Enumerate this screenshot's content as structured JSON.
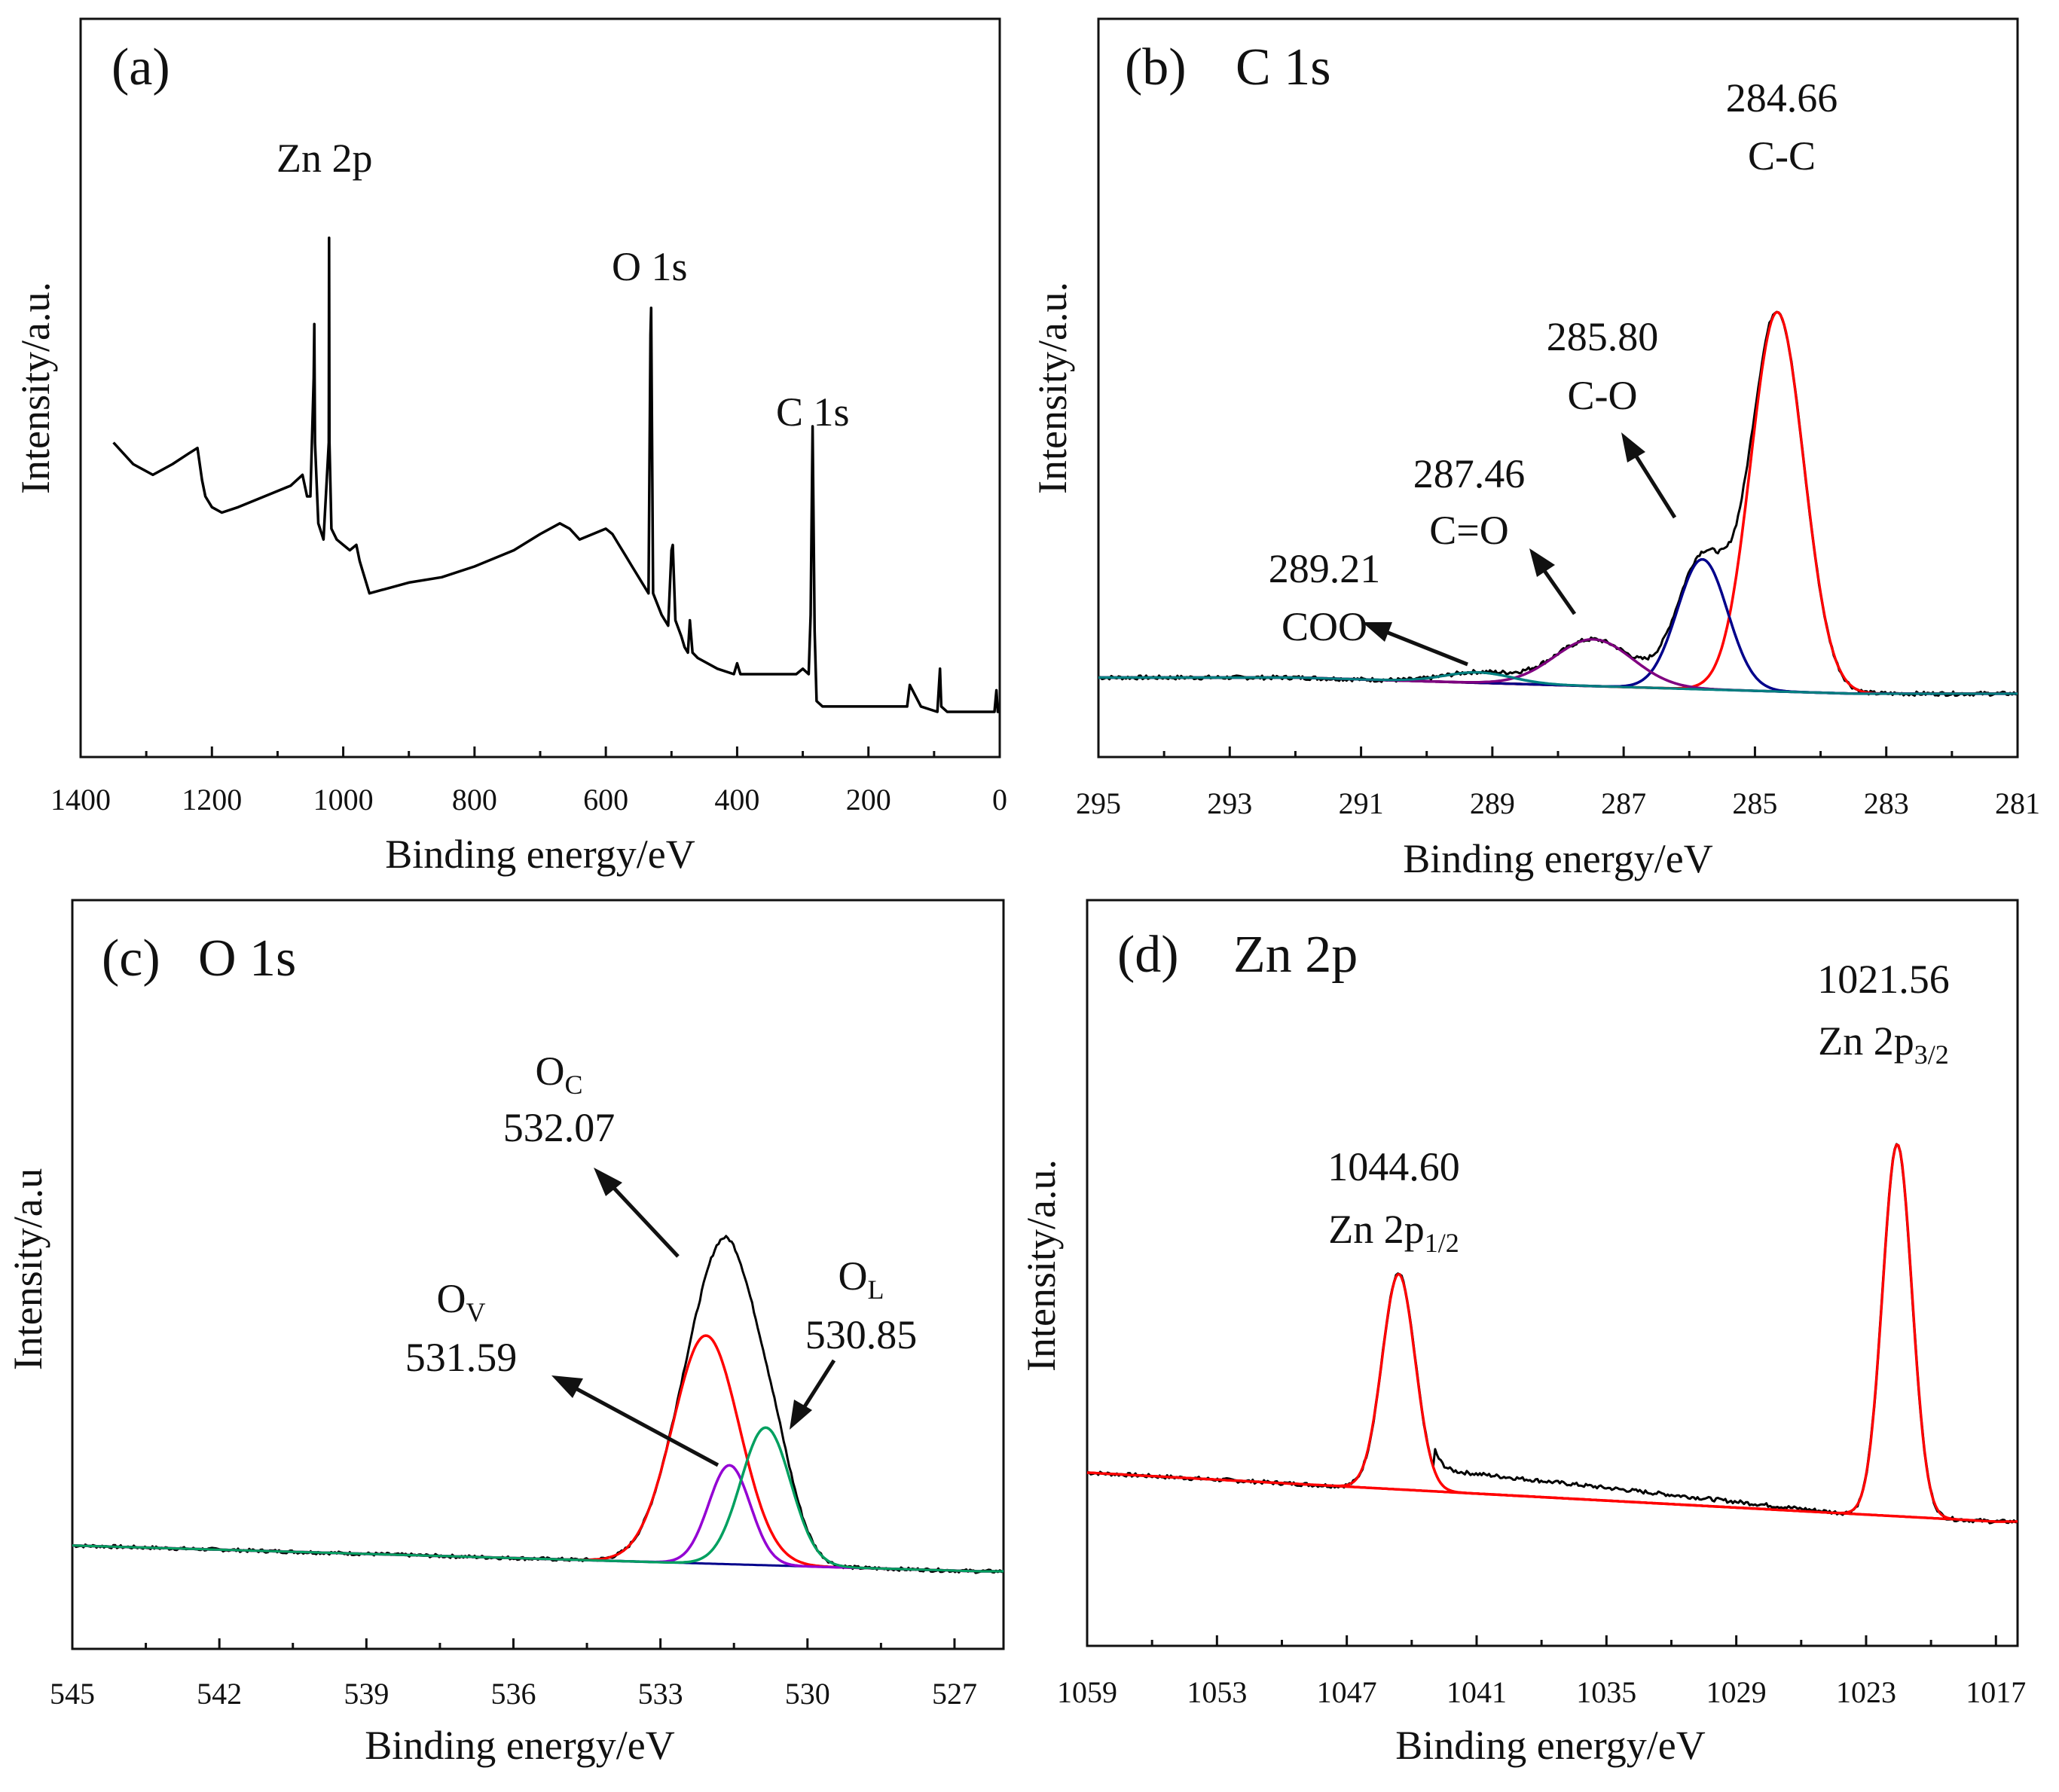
{
  "figure": {
    "panels": [
      {
        "id": "a",
        "label": "(a)",
        "title": ""
      },
      {
        "id": "b",
        "label": "(b)",
        "title": "C 1s"
      },
      {
        "id": "c",
        "label": "(c)",
        "title": "O 1s"
      },
      {
        "id": "d",
        "label": "(d)",
        "title": "Zn 2p"
      }
    ]
  },
  "chart_data": [
    {
      "id": "a",
      "type": "line",
      "title": "(a)",
      "xlabel": "Binding energy/eV",
      "ylabel": "Intensity/a.u.",
      "xlim": [
        1400,
        0
      ],
      "ylim": [
        0,
        100
      ],
      "xticks": [
        1400,
        1200,
        1000,
        800,
        600,
        400,
        200,
        0
      ],
      "series": [
        {
          "name": "survey",
          "color": "#000000",
          "x": [
            1350,
            1320,
            1290,
            1260,
            1235,
            1222,
            1215,
            1210,
            1200,
            1185,
            1160,
            1120,
            1080,
            1062,
            1055,
            1050,
            1045,
            1044,
            1043,
            1038,
            1030,
            1022,
            1021.5,
            1021,
            1018,
            1010,
            1000,
            990,
            980,
            975,
            970,
            960,
            900,
            850,
            800,
            740,
            700,
            670,
            655,
            640,
            600,
            590,
            580,
            570,
            560,
            545,
            535,
            532,
            531,
            528,
            515,
            505,
            500,
            498,
            494,
            485,
            480,
            475,
            472,
            468,
            460,
            430,
            405,
            400,
            395,
            380,
            340,
            310,
            300,
            291,
            288,
            285,
            282,
            279,
            270,
            240,
            200,
            150,
            141,
            137,
            120,
            95,
            91,
            89,
            80,
            50,
            20,
            8,
            5,
            3,
            1
          ],
          "y": [
            50,
            46,
            44,
            46,
            48,
            49,
            43,
            40,
            38,
            37,
            38,
            40,
            42,
            44,
            40,
            40,
            62,
            72,
            50,
            35,
            32,
            50,
            88,
            50,
            34,
            32,
            31,
            30,
            31,
            28,
            26,
            22,
            24,
            25,
            27,
            30,
            33,
            35,
            34,
            32,
            34,
            33,
            31,
            29,
            27,
            24,
            22,
            70,
            75,
            22,
            18,
            16,
            30,
            31,
            17,
            14,
            12,
            11,
            17,
            11,
            10,
            8,
            7,
            9,
            7,
            7,
            7,
            7,
            8,
            7,
            18,
            53,
            15,
            2,
            1,
            1,
            1,
            1,
            1,
            5,
            1,
            0,
            8,
            1,
            0,
            0,
            0,
            0,
            4,
            0,
            0
          ]
        }
      ],
      "annotations": [
        {
          "text": "Zn 2p"
        },
        {
          "text": "O 1s"
        },
        {
          "text": "C 1s"
        }
      ]
    },
    {
      "id": "b",
      "type": "line",
      "title": "(b) C 1s",
      "xlabel": "Binding energy/eV",
      "ylabel": "Intensity/a.u.",
      "xlim": [
        295,
        281
      ],
      "ylim": [
        0,
        100
      ],
      "xticks": [
        295,
        293,
        291,
        289,
        287,
        285,
        283,
        281
      ],
      "baseline": {
        "name": "background",
        "color": "#0000ff",
        "x_start": 292,
        "y_start": 6.6,
        "x_end": 283.5,
        "y_end": 3.5
      },
      "series": [
        {
          "name": "C-C",
          "color": "#ff0000",
          "center": 284.66,
          "height": 73,
          "fwhm": 0.95
        },
        {
          "name": "C-O",
          "color": "#00008b",
          "center": 285.8,
          "height": 25,
          "fwhm": 0.9
        },
        {
          "name": "C=O",
          "color": "#800080",
          "center": 287.46,
          "height": 9,
          "fwhm": 1.4
        },
        {
          "name": "COO",
          "color": "#008080",
          "center": 289.21,
          "height": 2,
          "fwhm": 1.2
        },
        {
          "name": "envelope",
          "color": "#000000",
          "sum": true
        }
      ],
      "annotations": [
        {
          "value": "284.66",
          "label": "C-C"
        },
        {
          "value": "285.80",
          "label": "C-O"
        },
        {
          "value": "287.46",
          "label": "C=O"
        },
        {
          "value": "289.21",
          "label": "COO"
        }
      ]
    },
    {
      "id": "c",
      "type": "line",
      "title": "(c) O 1s",
      "xlabel": "Binding energy/eV",
      "ylabel": "Intensity/a.u",
      "xlim": [
        545,
        526
      ],
      "ylim": [
        0,
        100
      ],
      "xticks": [
        545,
        542,
        539,
        536,
        533,
        530,
        527
      ],
      "baseline": {
        "name": "background",
        "color": "#00008b",
        "x_start": 545,
        "y_start": 9.5,
        "x_end": 526.5,
        "y_end": 3.5
      },
      "series": [
        {
          "name": "O_C",
          "color": "#ff0000",
          "center": 532.07,
          "height": 53,
          "fwhm": 1.6
        },
        {
          "name": "O_V",
          "color": "#9400d3",
          "center": 531.59,
          "height": 23,
          "fwhm": 1.0
        },
        {
          "name": "O_L",
          "color": "#00a060",
          "center": 530.85,
          "height": 32,
          "fwhm": 1.2
        },
        {
          "name": "envelope",
          "color": "#000000",
          "sum": true
        }
      ],
      "annotations": [
        {
          "label_main": "O",
          "label_sub": "C",
          "value": "532.07"
        },
        {
          "label_main": "O",
          "label_sub": "V",
          "value": "531.59"
        },
        {
          "label_main": "O",
          "label_sub": "L",
          "value": "530.85"
        }
      ]
    },
    {
      "id": "d",
      "type": "line",
      "title": "(d) Zn 2p",
      "xlabel": "Binding energy/eV",
      "ylabel": "Intensity/a.u.",
      "xlim": [
        1059,
        1016
      ],
      "ylim": [
        0,
        100
      ],
      "xticks": [
        1059,
        1053,
        1047,
        1041,
        1035,
        1029,
        1023,
        1017
      ],
      "baseline": {
        "name": "background",
        "color": "#0000ff",
        "x_start": 1059,
        "y_start": 22,
        "x_end": 1017,
        "y_end": 12
      },
      "series": [
        {
          "name": "Zn 2p1/2",
          "color": "#ff0000",
          "center": 1044.6,
          "height": 44,
          "fwhm": 1.8
        },
        {
          "name": "Zn 2p3/2",
          "color": "#ff0000",
          "center": 1021.56,
          "height": 76,
          "fwhm": 1.6
        },
        {
          "name": "envelope",
          "color": "#000000",
          "sum": true,
          "extra_shoulder": true
        }
      ],
      "annotations": [
        {
          "value": "1021.56",
          "label_main": "Zn 2p",
          "label_sub": "3/2"
        },
        {
          "value": "1044.60",
          "label_main": "Zn 2p",
          "label_sub": "1/2"
        }
      ]
    }
  ]
}
